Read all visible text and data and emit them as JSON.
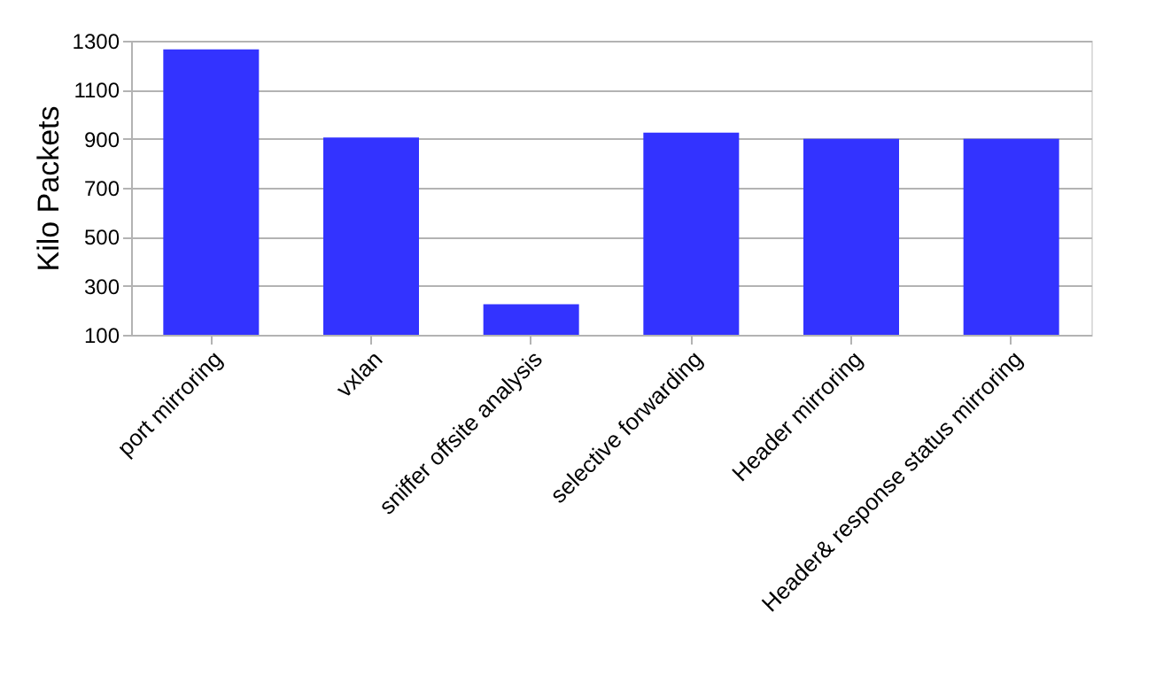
{
  "chart_data": {
    "type": "bar",
    "ylabel": "Kilo Packets",
    "categories": [
      "port mirroring",
      "vxlan",
      "sniffer offsite analysis",
      "selective forwarding",
      "Header mirroring",
      "Header& response status mirroring"
    ],
    "values": [
      1265,
      905,
      225,
      925,
      900,
      900
    ],
    "color": "#3333ff",
    "ylim": [
      100,
      1300
    ],
    "yticks": [
      100,
      300,
      500,
      700,
      900,
      1100,
      1300
    ],
    "grid": "y"
  }
}
